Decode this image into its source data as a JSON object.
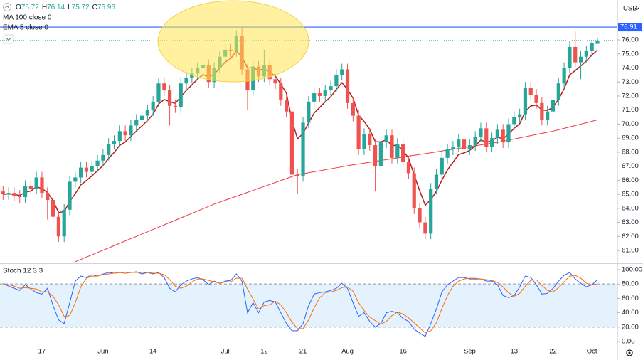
{
  "chart_data": [
    {
      "type": "candlestick",
      "currency": "USD",
      "ohlc_labels": [
        "O",
        "H",
        "L",
        "C"
      ],
      "up_color": "#26a69a",
      "down_color": "#ef5350",
      "categories": [
        null,
        null,
        null,
        null,
        null,
        null,
        null,
        "17",
        null,
        null,
        null,
        null,
        null,
        null,
        null,
        null,
        null,
        null,
        "Jun",
        null,
        null,
        null,
        null,
        null,
        null,
        null,
        null,
        "14",
        null,
        null,
        null,
        null,
        null,
        null,
        null,
        null,
        null,
        null,
        null,
        null,
        "Jul",
        null,
        null,
        null,
        null,
        null,
        null,
        "12",
        null,
        null,
        null,
        null,
        null,
        null,
        "21",
        null,
        null,
        null,
        null,
        null,
        null,
        null,
        "Aug",
        null,
        null,
        null,
        null,
        null,
        null,
        null,
        null,
        null,
        "16",
        null,
        null,
        null,
        null,
        null,
        null,
        null,
        null,
        null,
        null,
        null,
        "Sep",
        null,
        null,
        null,
        null,
        null,
        null,
        null,
        "13",
        null,
        null,
        null,
        null,
        null,
        null,
        "22",
        null,
        null,
        null,
        null,
        null,
        null,
        "Oct",
        null
      ],
      "open": [
        65.2,
        65.0,
        65.1,
        64.9,
        64.8,
        65.6,
        65.4,
        66.2,
        65.1,
        64.6,
        63.4,
        62.0,
        63.9,
        65.9,
        66.2,
        66.9,
        66.6,
        67.0,
        67.4,
        67.8,
        68.6,
        68.8,
        69.5,
        69.2,
        69.9,
        70.3,
        70.6,
        71.0,
        71.6,
        72.9,
        72.4,
        71.3,
        71.2,
        72.9,
        73.3,
        73.6,
        74.0,
        74.2,
        73.0,
        74.0,
        74.8,
        75.3,
        75.2,
        76.3,
        73.9,
        72.4,
        74.1,
        73.4,
        74.2,
        73.2,
        72.9,
        71.7,
        70.9,
        66.4,
        66.3,
        70.1,
        71.6,
        72.2,
        72.0,
        72.4,
        72.7,
        73.5,
        73.9,
        71.5,
        70.6,
        68.2,
        69.3,
        68.5,
        67.0,
        68.7,
        69.2,
        67.6,
        68.6,
        67.3,
        66.5,
        64.0,
        63.0,
        62.2,
        65.4,
        66.4,
        67.6,
        68.2,
        68.4,
        68.9,
        68.2,
        68.5,
        69.1,
        69.7,
        68.4,
        69.0,
        69.6,
        68.7,
        70.0,
        70.5,
        70.7,
        72.6,
        72.1,
        71.5,
        70.3,
        70.9,
        71.7,
        72.9,
        74.0,
        75.5,
        74.4,
        74.8,
        75.2,
        75.72
      ],
      "high": [
        65.6,
        65.5,
        65.5,
        65.3,
        66.0,
        66.0,
        66.6,
        66.6,
        65.5,
        65.0,
        63.8,
        64.3,
        66.3,
        66.6,
        67.3,
        67.3,
        67.4,
        67.8,
        68.2,
        69.0,
        69.2,
        69.9,
        69.9,
        70.3,
        70.7,
        71.0,
        71.4,
        72.0,
        73.3,
        73.3,
        72.8,
        71.7,
        73.3,
        73.7,
        74.0,
        74.4,
        74.6,
        74.6,
        74.4,
        75.2,
        75.7,
        75.7,
        76.7,
        76.9,
        74.3,
        74.5,
        74.5,
        75.3,
        74.6,
        73.6,
        73.3,
        72.1,
        71.3,
        66.8,
        70.5,
        72.0,
        72.6,
        72.6,
        72.8,
        73.1,
        73.9,
        74.3,
        74.3,
        71.9,
        71.0,
        69.7,
        69.7,
        68.9,
        69.1,
        69.6,
        69.6,
        69.0,
        69.0,
        67.7,
        66.9,
        64.4,
        63.4,
        65.8,
        66.8,
        68.0,
        68.6,
        68.8,
        69.3,
        69.3,
        68.9,
        69.5,
        70.1,
        70.1,
        69.4,
        70.0,
        70.0,
        70.4,
        70.9,
        71.1,
        73.0,
        73.0,
        72.5,
        71.9,
        71.3,
        72.1,
        73.3,
        74.4,
        75.9,
        76.6,
        75.2,
        75.6,
        76.0,
        76.14
      ],
      "low": [
        64.6,
        64.6,
        64.5,
        64.4,
        64.4,
        65.0,
        65.0,
        64.7,
        63.2,
        63.0,
        61.6,
        61.6,
        63.5,
        65.5,
        65.8,
        66.2,
        66.2,
        66.6,
        67.0,
        67.4,
        68.2,
        68.4,
        68.8,
        68.8,
        69.5,
        69.9,
        70.2,
        70.6,
        71.2,
        72.0,
        69.9,
        70.8,
        70.8,
        72.5,
        72.9,
        73.2,
        73.6,
        72.6,
        72.6,
        73.6,
        74.4,
        74.8,
        74.8,
        73.5,
        71.0,
        72.0,
        73.0,
        73.0,
        72.8,
        72.5,
        71.3,
        70.5,
        65.6,
        65.0,
        65.9,
        69.7,
        71.2,
        71.6,
        71.6,
        72.0,
        72.3,
        73.1,
        71.1,
        70.2,
        67.8,
        67.8,
        68.1,
        65.2,
        66.6,
        68.3,
        67.2,
        67.2,
        66.9,
        66.1,
        63.6,
        62.6,
        61.8,
        61.8,
        65.0,
        66.0,
        67.2,
        67.8,
        68.0,
        67.8,
        67.8,
        68.1,
        68.7,
        68.0,
        68.0,
        68.6,
        68.3,
        68.3,
        69.6,
        70.1,
        70.3,
        71.7,
        71.1,
        69.9,
        69.9,
        70.5,
        71.3,
        72.5,
        73.6,
        74.0,
        73.2,
        74.4,
        74.8,
        75.72
      ],
      "close": [
        65.0,
        65.1,
        64.9,
        64.8,
        65.6,
        65.4,
        66.2,
        65.1,
        64.6,
        63.4,
        62.0,
        63.9,
        65.9,
        66.2,
        66.9,
        66.6,
        67.0,
        67.4,
        67.8,
        68.6,
        68.8,
        69.5,
        69.2,
        69.9,
        70.3,
        70.6,
        71.0,
        71.6,
        72.9,
        72.4,
        71.3,
        71.2,
        72.9,
        73.3,
        73.6,
        74.0,
        74.2,
        73.0,
        74.0,
        74.8,
        75.3,
        75.2,
        76.3,
        73.9,
        72.4,
        74.1,
        73.4,
        74.2,
        73.2,
        72.9,
        71.7,
        70.9,
        66.4,
        66.3,
        70.1,
        71.6,
        72.2,
        72.0,
        72.4,
        72.7,
        73.5,
        73.9,
        71.5,
        70.6,
        68.2,
        69.3,
        68.5,
        67.0,
        68.7,
        69.2,
        67.6,
        68.6,
        67.3,
        66.5,
        64.0,
        63.0,
        62.2,
        65.4,
        66.4,
        67.6,
        68.2,
        68.4,
        68.9,
        68.2,
        68.5,
        69.1,
        69.7,
        68.4,
        69.0,
        69.6,
        68.7,
        70.0,
        70.5,
        70.7,
        72.6,
        72.1,
        71.5,
        70.3,
        70.9,
        71.7,
        72.9,
        74.0,
        75.5,
        74.4,
        74.8,
        75.2,
        75.8,
        75.96
      ],
      "series": [
        {
          "name": "MA 100 close 0",
          "color": "#f23645",
          "values": [
            null,
            null,
            null,
            null,
            null,
            null,
            null,
            null,
            null,
            null,
            null,
            null,
            null,
            60.2,
            60.36,
            60.53,
            60.69,
            60.86,
            61.02,
            61.18,
            61.35,
            61.51,
            61.68,
            61.84,
            62.0,
            62.17,
            62.33,
            62.5,
            62.66,
            62.82,
            62.99,
            63.15,
            63.32,
            63.48,
            63.64,
            63.81,
            63.97,
            64.14,
            64.3,
            64.44,
            64.58,
            64.72,
            64.86,
            65.0,
            65.14,
            65.28,
            65.42,
            65.56,
            65.7,
            65.84,
            65.98,
            66.12,
            66.26,
            66.4,
            66.47,
            66.54,
            66.61,
            66.68,
            66.75,
            66.82,
            66.89,
            66.96,
            67.03,
            67.1,
            67.16,
            67.22,
            67.28,
            67.35,
            67.41,
            67.47,
            67.53,
            67.59,
            67.65,
            67.72,
            67.78,
            67.84,
            67.9,
            67.96,
            68.02,
            68.09,
            68.15,
            68.21,
            68.27,
            68.33,
            68.39,
            68.46,
            68.52,
            68.58,
            68.64,
            68.7,
            68.78,
            68.86,
            68.94,
            69.02,
            69.1,
            69.18,
            69.26,
            69.34,
            69.42,
            69.5,
            69.6,
            69.7,
            69.8,
            69.9,
            70.0,
            70.1,
            70.2,
            70.3
          ]
        },
        {
          "name": "EMA 5 close 0",
          "color": "#b71c1c",
          "values": [
            65.0,
            65.03,
            64.99,
            64.92,
            65.15,
            65.23,
            65.55,
            65.4,
            65.13,
            64.56,
            63.7,
            63.77,
            64.48,
            65.05,
            65.67,
            65.98,
            66.32,
            66.68,
            67.05,
            67.57,
            67.98,
            68.49,
            68.73,
            69.12,
            69.51,
            69.87,
            70.25,
            70.7,
            71.43,
            71.75,
            71.6,
            71.47,
            71.95,
            72.4,
            72.8,
            73.2,
            73.53,
            73.35,
            73.57,
            73.98,
            74.42,
            74.68,
            75.22,
            74.78,
            73.99,
            74.03,
            73.82,
            73.95,
            73.7,
            73.43,
            72.85,
            72.2,
            70.27,
            68.95,
            69.33,
            70.09,
            70.79,
            71.19,
            71.59,
            71.96,
            72.47,
            72.95,
            72.47,
            71.85,
            70.63,
            70.19,
            69.63,
            68.75,
            68.73,
            68.89,
            68.46,
            68.51,
            68.11,
            67.57,
            66.38,
            65.25,
            64.23,
            64.62,
            65.21,
            66.01,
            66.74,
            67.29,
            67.83,
            67.95,
            68.13,
            68.45,
            68.87,
            68.71,
            68.81,
            69.07,
            68.95,
            69.3,
            69.7,
            70.03,
            70.89,
            71.29,
            71.36,
            71.01,
            70.97,
            71.21,
            71.77,
            72.51,
            73.51,
            73.81,
            74.14,
            74.49,
            74.93,
            75.27
          ]
        }
      ],
      "hline": {
        "value": 76.91,
        "label": "76.91",
        "color": "#2962ff"
      },
      "ylim": [
        60.09,
        78.84
      ],
      "yticks": [
        {
          "value": 61,
          "label": "61.00"
        },
        {
          "value": 62,
          "label": "62.00"
        },
        {
          "value": 63,
          "label": "63.00"
        },
        {
          "value": 64,
          "label": "64.00"
        },
        {
          "value": 65,
          "label": "65.00"
        },
        {
          "value": 66,
          "label": "66.00"
        },
        {
          "value": 67,
          "label": "67.00"
        },
        {
          "value": 68,
          "label": "68.00"
        },
        {
          "value": 69,
          "label": "69.00"
        },
        {
          "value": 70,
          "label": "70.00"
        },
        {
          "value": 71,
          "label": "71.00"
        },
        {
          "value": 72,
          "label": "72.00"
        },
        {
          "value": 73,
          "label": "73.00"
        },
        {
          "value": 74,
          "label": "74.00"
        },
        {
          "value": 75,
          "label": "75.00"
        },
        {
          "value": 76,
          "label": "76.00"
        }
      ],
      "grid": false
    },
    {
      "type": "line",
      "title": "Stoch 12 3 3",
      "band": [
        20,
        80
      ],
      "band_color": "#e3f2fd",
      "ylim": [
        -5.9,
        106.9
      ],
      "yticks": [
        {
          "value": 0,
          "label": "0.00"
        },
        {
          "value": 20,
          "label": "20.00"
        },
        {
          "value": 40,
          "label": "40.00"
        },
        {
          "value": 60,
          "label": "60.00"
        },
        {
          "value": 80,
          "label": "80.00"
        },
        {
          "value": 100,
          "label": "100.00"
        }
      ],
      "series": [
        {
          "color": "#2962ff",
          "values": [
            81,
            77,
            74,
            71,
            79,
            73,
            68,
            66,
            74,
            50,
            30,
            25,
            54,
            84,
            91,
            89,
            93,
            91,
            94,
            96,
            95,
            96,
            95,
            96,
            97,
            94,
            96,
            94,
            96,
            89,
            74,
            69,
            79,
            84,
            87,
            89,
            86,
            79,
            84,
            81,
            84,
            85,
            94,
            84,
            40,
            54,
            40,
            55,
            57,
            55,
            40,
            25,
            15,
            15,
            25,
            50,
            66,
            68,
            69,
            71,
            74,
            81,
            74,
            54,
            35,
            40,
            28,
            20,
            25,
            40,
            42,
            40,
            32,
            28,
            17,
            12,
            7,
            25,
            45,
            69,
            79,
            84,
            89,
            89,
            87,
            87,
            87,
            84,
            84,
            79,
            64,
            61,
            64,
            76,
            91,
            89,
            79,
            66,
            67,
            74,
            84,
            92,
            96,
            87,
            81,
            76,
            79,
            86
          ]
        },
        {
          "color": "#ff6d00",
          "values": [
            80,
            79,
            77,
            74,
            75,
            74,
            73,
            69,
            69,
            63,
            51,
            35,
            36,
            54,
            76,
            88,
            91,
            91,
            93,
            94,
            95,
            96,
            95,
            96,
            96,
            96,
            96,
            95,
            95,
            93,
            86,
            77,
            74,
            77,
            83,
            87,
            87,
            85,
            83,
            81,
            83,
            83,
            88,
            88,
            73,
            59,
            45,
            50,
            51,
            56,
            51,
            40,
            27,
            18,
            18,
            30,
            47,
            61,
            68,
            69,
            71,
            75,
            76,
            70,
            54,
            43,
            34,
            29,
            24,
            28,
            36,
            41,
            38,
            33,
            26,
            19,
            12,
            15,
            26,
            46,
            64,
            77,
            84,
            87,
            88,
            88,
            87,
            86,
            85,
            82,
            76,
            68,
            63,
            67,
            77,
            85,
            86,
            78,
            71,
            69,
            75,
            83,
            91,
            92,
            88,
            81,
            79,
            80
          ]
        }
      ],
      "grid": false
    }
  ]
}
